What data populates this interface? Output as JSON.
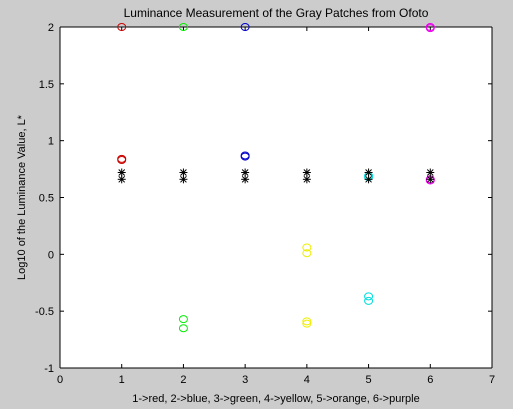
{
  "chart_data": {
    "type": "scatter",
    "title": "Luminance Measurement of the Gray Patches from Ofoto",
    "xlabel": "1->red, 2->blue, 3->green, 4->yellow, 5->orange, 6->purple",
    "ylabel": "Log10 of the Luminance Value, L*",
    "xlim": [
      0,
      7
    ],
    "ylim": [
      -1,
      2
    ],
    "xticks": [
      "0",
      "1",
      "2",
      "3",
      "4",
      "5",
      "6",
      "7"
    ],
    "yticks": [
      "-1",
      "-0.5",
      "0",
      "0.5",
      "1",
      "1.5",
      "2"
    ],
    "grid": false,
    "legend": "none",
    "colors": {
      "figure_bg": "#cccccc",
      "axes_bg": "#ffffff",
      "reference": "#000000"
    },
    "series": [
      {
        "marker": "circle",
        "color": "#cc0000",
        "points": [
          [
            1,
            2.0
          ],
          [
            1,
            0.84
          ],
          [
            1,
            0.83
          ]
        ]
      },
      {
        "marker": "circle",
        "color": "#00ee00",
        "points": [
          [
            2,
            2.0
          ],
          [
            2,
            -0.57
          ],
          [
            2,
            -0.65
          ]
        ]
      },
      {
        "marker": "circle",
        "color": "#0000cc",
        "points": [
          [
            3,
            2.0
          ],
          [
            3,
            0.87
          ],
          [
            3,
            0.86
          ]
        ]
      },
      {
        "marker": "circle",
        "color": "#eeee00",
        "points": [
          [
            4,
            0.06
          ],
          [
            4,
            0.01
          ],
          [
            4,
            -0.59
          ],
          [
            4,
            -0.61
          ]
        ]
      },
      {
        "marker": "circle",
        "color": "#00dddd",
        "points": [
          [
            5,
            0.69
          ],
          [
            5,
            0.68
          ],
          [
            5,
            -0.37
          ],
          [
            5,
            -0.41
          ]
        ]
      },
      {
        "marker": "circle",
        "color": "#ee00ee",
        "points": [
          [
            6,
            2.0
          ],
          [
            6,
            1.99
          ],
          [
            6,
            0.66
          ],
          [
            6,
            0.65
          ]
        ]
      },
      {
        "marker": "asterisk",
        "color": "#000000",
        "points": [
          [
            1,
            0.72
          ],
          [
            1,
            0.66
          ],
          [
            2,
            0.72
          ],
          [
            2,
            0.66
          ],
          [
            3,
            0.72
          ],
          [
            3,
            0.66
          ],
          [
            4,
            0.72
          ],
          [
            4,
            0.66
          ],
          [
            5,
            0.72
          ],
          [
            5,
            0.66
          ],
          [
            6,
            0.72
          ],
          [
            6,
            0.66
          ]
        ]
      }
    ]
  }
}
